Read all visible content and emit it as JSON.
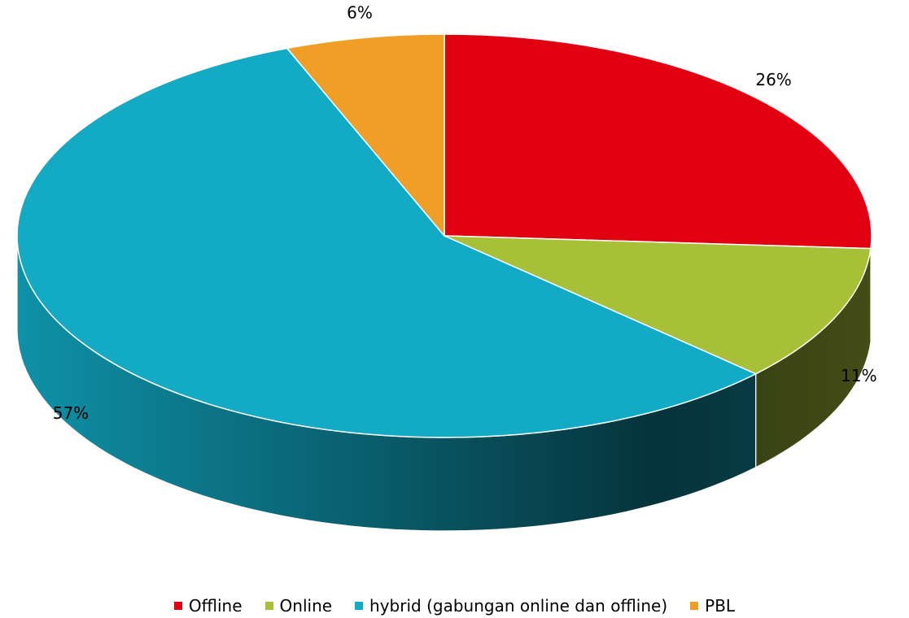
{
  "chart_data": {
    "type": "pie",
    "categories": [
      "Offline",
      "Online",
      "hybrid (gabungan online dan offline)",
      "PBL"
    ],
    "values": [
      26,
      11,
      57,
      6
    ],
    "value_labels": [
      "26%",
      "11%",
      "57%",
      "6%"
    ],
    "colors": [
      "#e00012",
      "#a8c037",
      "#12aac5",
      "#f19e26"
    ],
    "legend": "bottom"
  }
}
